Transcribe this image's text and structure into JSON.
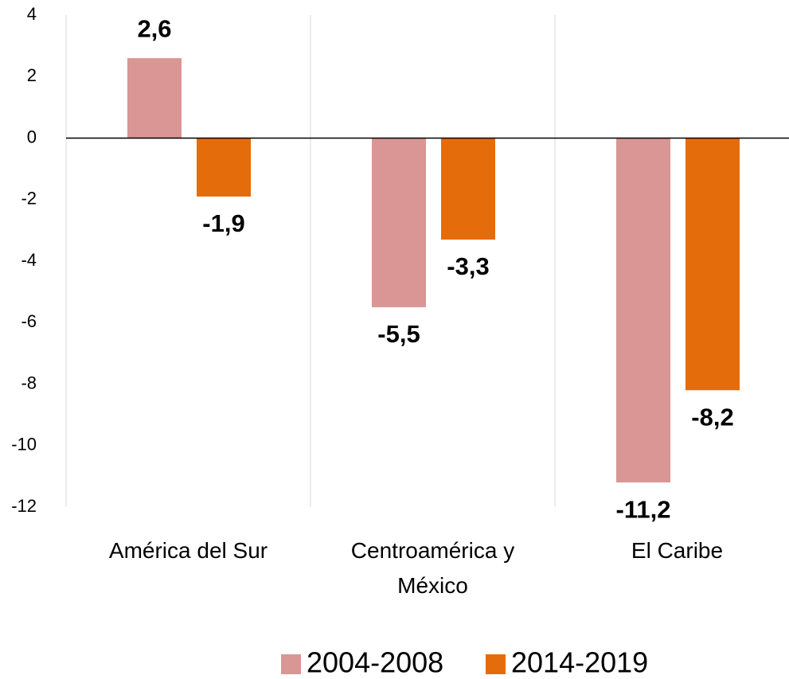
{
  "chart_data": {
    "type": "bar",
    "categories": [
      "América del Sur",
      "Centroamérica y México",
      "El Caribe"
    ],
    "series": [
      {
        "name": "2004-2008",
        "color": "#d99694",
        "values": [
          2.6,
          -5.5,
          -11.2
        ],
        "value_labels": [
          "2,6",
          "-5,5",
          "-11,2"
        ]
      },
      {
        "name": "2014-2019",
        "color": "#e46c0a",
        "values": [
          -1.9,
          -3.3,
          -8.2
        ],
        "value_labels": [
          "-1,9",
          "-3,3",
          "-8,2"
        ]
      }
    ],
    "ylim": [
      -12,
      4
    ],
    "yticks": [
      -12,
      -10,
      -8,
      -6,
      -4,
      -2,
      0,
      2,
      4
    ],
    "legend": "bottom"
  }
}
